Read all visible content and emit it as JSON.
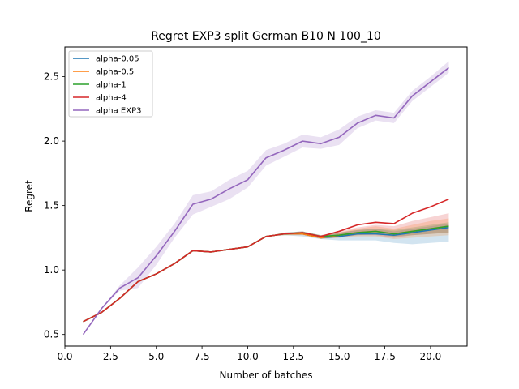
{
  "chart_data": {
    "type": "line",
    "title": "Regret EXP3 split German B10 N 100_10",
    "xlabel": "Number of batches",
    "ylabel": "Regret",
    "xlim": [
      0.0,
      22.0
    ],
    "ylim": [
      0.41,
      2.73
    ],
    "xticks": [
      0.0,
      2.5,
      5.0,
      7.5,
      10.0,
      12.5,
      15.0,
      17.5,
      20.0
    ],
    "xtick_labels": [
      "0.0",
      "2.5",
      "5.0",
      "7.5",
      "10.0",
      "12.5",
      "15.0",
      "17.5",
      "20.0"
    ],
    "yticks": [
      0.5,
      1.0,
      1.5,
      2.0,
      2.5
    ],
    "ytick_labels": [
      "0.5",
      "1.0",
      "1.5",
      "2.0",
      "2.5"
    ],
    "grid": false,
    "legend_position": "top-left",
    "x": [
      1,
      2,
      3,
      4,
      5,
      6,
      7,
      8,
      9,
      10,
      11,
      12,
      13,
      14,
      15,
      16,
      17,
      18,
      19,
      20,
      21
    ],
    "series": [
      {
        "name": "alpha-0.05",
        "color": "#1f77b4",
        "values": [
          0.6,
          0.67,
          0.78,
          0.91,
          0.97,
          1.05,
          1.15,
          1.14,
          1.16,
          1.18,
          1.26,
          1.28,
          1.28,
          1.25,
          1.26,
          1.28,
          1.28,
          1.27,
          1.29,
          1.31,
          1.33
        ],
        "lower": [
          0.6,
          0.67,
          0.78,
          0.91,
          0.97,
          1.05,
          1.15,
          1.14,
          1.16,
          1.18,
          1.26,
          1.27,
          1.26,
          1.24,
          1.23,
          1.23,
          1.23,
          1.21,
          1.2,
          1.21,
          1.22
        ],
        "upper": [
          0.6,
          0.67,
          0.78,
          0.91,
          0.97,
          1.05,
          1.15,
          1.14,
          1.16,
          1.18,
          1.26,
          1.29,
          1.3,
          1.27,
          1.29,
          1.31,
          1.32,
          1.3,
          1.32,
          1.34,
          1.36
        ]
      },
      {
        "name": "alpha-0.5",
        "color": "#ff7f0e",
        "values": [
          0.6,
          0.67,
          0.78,
          0.91,
          0.97,
          1.05,
          1.15,
          1.14,
          1.16,
          1.18,
          1.26,
          1.28,
          1.28,
          1.25,
          1.27,
          1.29,
          1.3,
          1.28,
          1.3,
          1.32,
          1.34
        ],
        "lower": [
          0.6,
          0.67,
          0.78,
          0.91,
          0.97,
          1.05,
          1.15,
          1.14,
          1.16,
          1.18,
          1.26,
          1.27,
          1.27,
          1.24,
          1.25,
          1.26,
          1.26,
          1.24,
          1.25,
          1.26,
          1.27
        ],
        "upper": [
          0.6,
          0.67,
          0.78,
          0.91,
          0.97,
          1.05,
          1.15,
          1.14,
          1.16,
          1.18,
          1.26,
          1.29,
          1.29,
          1.27,
          1.29,
          1.32,
          1.34,
          1.32,
          1.35,
          1.38,
          1.4
        ]
      },
      {
        "name": "alpha-1",
        "color": "#2ca02c",
        "values": [
          0.6,
          0.67,
          0.78,
          0.91,
          0.97,
          1.05,
          1.15,
          1.14,
          1.16,
          1.18,
          1.26,
          1.28,
          1.29,
          1.26,
          1.27,
          1.29,
          1.3,
          1.28,
          1.3,
          1.32,
          1.34
        ],
        "lower": [
          0.6,
          0.67,
          0.78,
          0.91,
          0.97,
          1.05,
          1.15,
          1.14,
          1.16,
          1.18,
          1.26,
          1.27,
          1.28,
          1.25,
          1.26,
          1.27,
          1.28,
          1.26,
          1.27,
          1.28,
          1.29
        ],
        "upper": [
          0.6,
          0.67,
          0.78,
          0.91,
          0.97,
          1.05,
          1.15,
          1.14,
          1.16,
          1.18,
          1.26,
          1.29,
          1.3,
          1.27,
          1.29,
          1.31,
          1.32,
          1.31,
          1.33,
          1.35,
          1.37
        ]
      },
      {
        "name": "alpha-4",
        "color": "#d62728",
        "values": [
          0.6,
          0.67,
          0.78,
          0.91,
          0.97,
          1.05,
          1.15,
          1.14,
          1.16,
          1.18,
          1.26,
          1.28,
          1.29,
          1.26,
          1.3,
          1.35,
          1.37,
          1.36,
          1.44,
          1.49,
          1.55
        ],
        "lower": [
          0.6,
          0.67,
          0.78,
          0.91,
          0.97,
          1.05,
          1.15,
          1.14,
          1.16,
          1.18,
          1.26,
          1.28,
          1.28,
          1.25,
          1.25,
          1.27,
          1.27,
          1.25,
          1.27,
          1.28,
          1.29
        ],
        "upper": [
          0.6,
          0.67,
          0.78,
          0.91,
          0.97,
          1.05,
          1.15,
          1.14,
          1.16,
          1.18,
          1.26,
          1.29,
          1.3,
          1.27,
          1.3,
          1.33,
          1.35,
          1.34,
          1.38,
          1.41,
          1.44
        ]
      },
      {
        "name": "alpha EXP3",
        "color": "#9467bd",
        "values": [
          0.5,
          0.7,
          0.86,
          0.94,
          1.11,
          1.3,
          1.51,
          1.55,
          1.63,
          1.7,
          1.87,
          1.93,
          2.0,
          1.98,
          2.03,
          2.14,
          2.2,
          2.18,
          2.35,
          2.46,
          2.57
        ],
        "lower": [
          0.5,
          0.7,
          0.84,
          0.86,
          1.04,
          1.25,
          1.43,
          1.49,
          1.55,
          1.64,
          1.81,
          1.88,
          1.95,
          1.94,
          1.97,
          2.1,
          2.16,
          2.14,
          2.31,
          2.42,
          2.53
        ],
        "upper": [
          0.5,
          0.7,
          0.88,
          1.02,
          1.18,
          1.36,
          1.58,
          1.61,
          1.7,
          1.77,
          1.93,
          1.98,
          2.05,
          2.03,
          2.09,
          2.19,
          2.24,
          2.22,
          2.39,
          2.5,
          2.62
        ]
      }
    ]
  }
}
